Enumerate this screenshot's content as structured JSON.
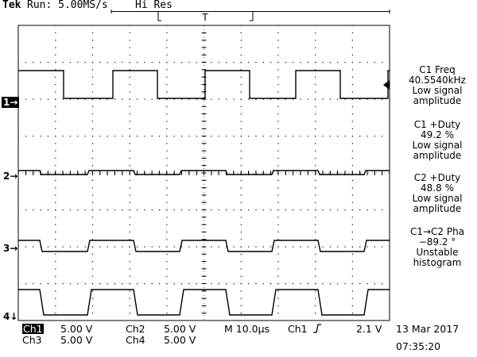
{
  "header": {
    "brand": "Tek",
    "run_status": "Run: 5.00MS/s",
    "acq_mode": "Hi Res",
    "trigger_marker": "T"
  },
  "channel_markers": [
    "1→",
    "2→",
    "3→",
    "4↓"
  ],
  "measurements": [
    {
      "title": "C1 Freq",
      "value": "40.5540kHz",
      "note": "Low signal amplitude"
    },
    {
      "title": "C1 +Duty",
      "value": "49.2 %",
      "note": "Low signal amplitude"
    },
    {
      "title": "C2 +Duty",
      "value": "48.8 %",
      "note": "Low signal amplitude"
    },
    {
      "title": "C1→C2 Pha",
      "value": "−89.2 °",
      "note": "Unstable histogram"
    }
  ],
  "settings": {
    "ch1_label": "Ch1",
    "ch1_scale": "5.00 V",
    "ch2_label": "Ch2",
    "ch2_scale": "5.00 V",
    "ch3_label": "Ch3",
    "ch3_scale": "5.00 V",
    "ch4_label": "Ch4",
    "ch4_scale": "5.00 V",
    "timebase": "M 10.0µs",
    "trigger_source": "Ch1",
    "trigger_slope_icon": "rising-edge-icon",
    "trigger_level": "2.1 V"
  },
  "datetime": {
    "date": "13 Mar 2017",
    "time": "07:35:20"
  },
  "colors": {
    "trace": "#000000",
    "grid": "#000000",
    "background": "#ffffff"
  }
}
